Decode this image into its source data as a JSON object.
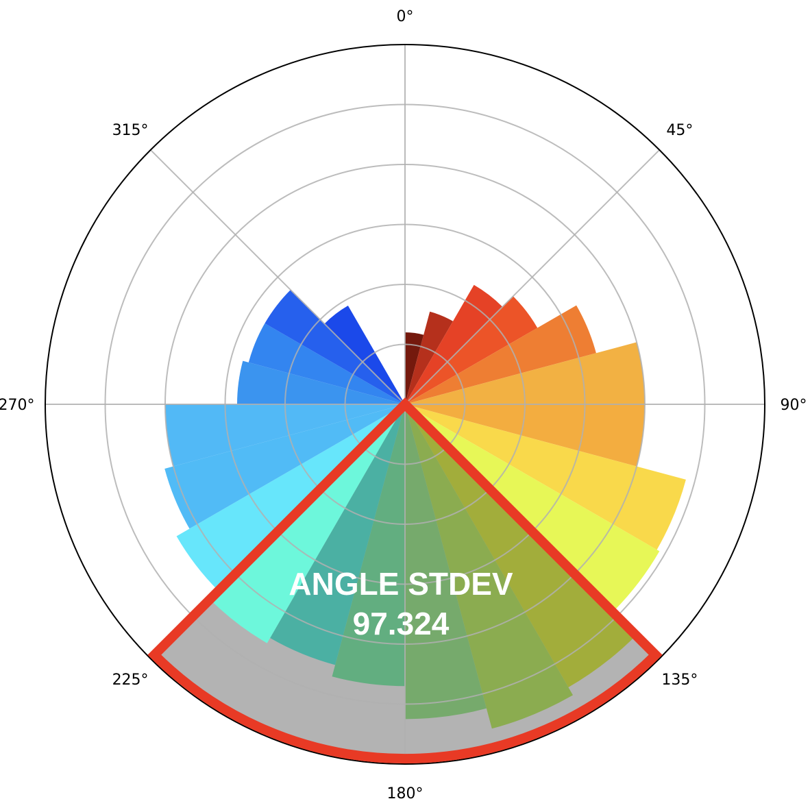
{
  "chart_data": {
    "type": "polar-bar",
    "theta_zero": "N",
    "theta_direction": "clockwise",
    "rmax": 6,
    "rticks": [
      1,
      2,
      3,
      4,
      5
    ],
    "theta_tick_labels": [
      "0°",
      "45°",
      "90°",
      "135°",
      "180°",
      "225°",
      "270°",
      "315°"
    ],
    "bin_width_deg": 15,
    "bars": [
      {
        "angle": 7.5,
        "value": 1.2,
        "color": "#74190d"
      },
      {
        "angle": 22.5,
        "value": 1.6,
        "color": "#b5301c"
      },
      {
        "angle": 37.5,
        "value": 2.3,
        "color": "#e54226"
      },
      {
        "angle": 52.5,
        "value": 2.55,
        "color": "#ec5428"
      },
      {
        "angle": 67.5,
        "value": 3.3,
        "color": "#ee7e33"
      },
      {
        "angle": 82.5,
        "value": 4.0,
        "color": "#f2b143"
      },
      {
        "angle": 97.5,
        "value": 4.0,
        "color": "#f3ad40"
      },
      {
        "angle": 112.5,
        "value": 4.85,
        "color": "#f9d94b"
      },
      {
        "angle": 127.5,
        "value": 4.9,
        "color": "#e7f757"
      },
      {
        "angle": 142.5,
        "value": 5.45,
        "color": "#a2ad3b"
      },
      {
        "angle": 157.5,
        "value": 5.6,
        "color": "#8bac50"
      },
      {
        "angle": 172.5,
        "value": 5.25,
        "color": "#76aa6c"
      },
      {
        "angle": 187.5,
        "value": 4.7,
        "color": "#62ae80"
      },
      {
        "angle": 202.5,
        "value": 4.5,
        "color": "#4bb0a3"
      },
      {
        "angle": 217.5,
        "value": 4.6,
        "color": "#6df7db"
      },
      {
        "angle": 232.5,
        "value": 4.4,
        "color": "#67e6fb"
      },
      {
        "angle": 247.5,
        "value": 4.15,
        "color": "#51bbf6"
      },
      {
        "angle": 262.5,
        "value": 4.0,
        "color": "#52b9f6"
      },
      {
        "angle": 277.5,
        "value": 2.8,
        "color": "#3b94ef"
      },
      {
        "angle": 292.5,
        "value": 2.7,
        "color": "#3385f0"
      },
      {
        "angle": 307.5,
        "value": 2.7,
        "color": "#2660ed"
      },
      {
        "angle": 322.5,
        "value": 1.9,
        "color": "#1b49ea"
      },
      {
        "angle": 337.5,
        "value": 0,
        "color": "#1b49ea"
      },
      {
        "angle": 352.5,
        "value": 0,
        "color": "#74190d"
      }
    ],
    "annotation": {
      "lines": [
        "ANGLE STDEV",
        "97.324"
      ],
      "sector_start_deg": 135,
      "sector_end_deg": 225,
      "fill_color": "#b3b3b3",
      "outline_color": "#e83a25"
    }
  }
}
